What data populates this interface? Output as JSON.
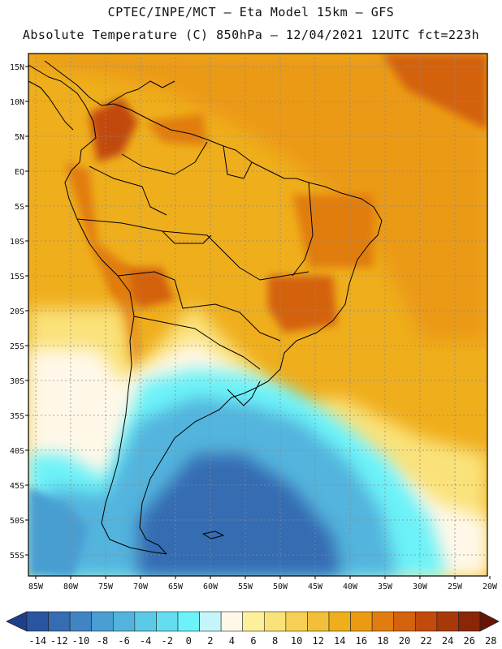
{
  "header": {
    "line1": "CPTEC/INPE/MCT –  Eta Model 15km – GFS",
    "line2": "Absolute Temperature (C) 850hPa – 12/04/2021 12UTC fct=223h"
  },
  "map": {
    "lat_labels": [
      "15N",
      "10N",
      "5N",
      "EQ",
      "5S",
      "10S",
      "15S",
      "20S",
      "25S",
      "30S",
      "35S",
      "40S",
      "45S",
      "50S",
      "55S"
    ],
    "lon_labels": [
      "85W",
      "80W",
      "75W",
      "70W",
      "65W",
      "60W",
      "55W",
      "50W",
      "45W",
      "40W",
      "35W",
      "30W",
      "25W",
      "20W"
    ],
    "region_lon_range": [
      -86,
      -20
    ],
    "region_lat_range": [
      -58,
      16
    ]
  },
  "colorbar": {
    "labels": [
      "-14",
      "-12",
      "-10",
      "-8",
      "-6",
      "-4",
      "-2",
      "0",
      "2",
      "4",
      "6",
      "8",
      "10",
      "12",
      "14",
      "16",
      "18",
      "20",
      "22",
      "24",
      "26",
      "28"
    ],
    "colors": [
      "#1f3e8e",
      "#2a55a0",
      "#356cb2",
      "#4184c3",
      "#4a9ed1",
      "#52b4dd",
      "#5ccae6",
      "#64ddf0",
      "#6cf2f8",
      "#c6f4fb",
      "#fff8e8",
      "#fdf09a",
      "#fae27a",
      "#f5d055",
      "#f2bf3b",
      "#efae1c",
      "#eb9a12",
      "#e17d10",
      "#d4620e",
      "#c24a0c",
      "#a8380a",
      "#8a2708",
      "#6a1405"
    ],
    "min_label": "-14",
    "max_label": "28"
  }
}
